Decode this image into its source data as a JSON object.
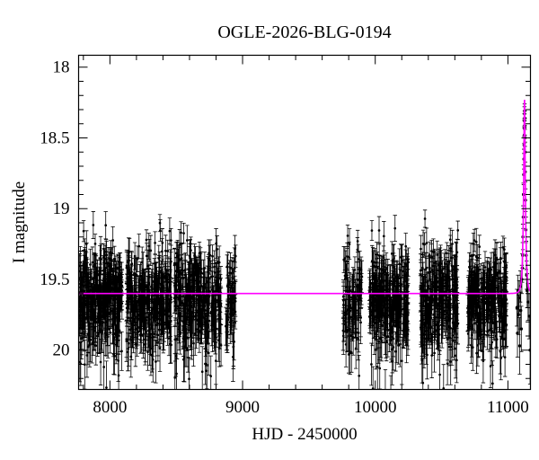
{
  "window": {
    "background": "#ffffff"
  },
  "chart_data": {
    "type": "scatter",
    "title": "OGLE-2026-BLG-0194",
    "xlabel": "HJD - 2450000",
    "ylabel": "I magnitude",
    "xlim": [
      7764,
      11170
    ],
    "ylim_display": [
      20.278,
      17.916
    ],
    "y_axis_inverted": true,
    "x_major_ticks": [
      8000,
      9000,
      10000,
      11000
    ],
    "x_major_tick_labels": [
      "8000",
      "9000",
      "10000",
      "11000"
    ],
    "x_minor_step": 200,
    "y_major_ticks": [
      18,
      18.5,
      19,
      19.5,
      20
    ],
    "y_major_tick_labels": [
      "18",
      "18.5",
      "19",
      "19.5",
      "20"
    ],
    "y_minor_step": 0.1,
    "grid": false,
    "legend": null,
    "point_color": "#000000",
    "model_color": "#ff00ff",
    "baseline_mag": 19.6,
    "model": {
      "kind": "paczynski",
      "t0": 11125,
      "tE": 14,
      "u0": 0.29,
      "peak_mag": 18.23
    },
    "scatter_mag_mean": 19.62,
    "scatter_mag_sigma": 0.175,
    "faint_tail_fraction": 0.08,
    "seasons": [
      {
        "hjd_start": 7768,
        "hjd_end": 8093,
        "n": 330
      },
      {
        "hjd_start": 8124,
        "hjd_end": 8462,
        "n": 305
      },
      {
        "hjd_start": 8483,
        "hjd_end": 8838,
        "n": 305
      },
      {
        "hjd_start": 8872,
        "hjd_end": 8948,
        "n": 55
      },
      {
        "hjd_start": 9757,
        "hjd_end": 9900,
        "n": 95
      },
      {
        "hjd_start": 9955,
        "hjd_end": 10250,
        "n": 285
      },
      {
        "hjd_start": 10340,
        "hjd_end": 10630,
        "n": 285
      },
      {
        "hjd_start": 10695,
        "hjd_end": 10990,
        "n": 265
      }
    ],
    "event_points": [
      [
        11068,
        19.7,
        0.13
      ],
      [
        11072,
        19.88,
        0.17
      ],
      [
        11076,
        19.58,
        0.11
      ],
      [
        11080,
        19.75,
        0.14
      ],
      [
        11085,
        19.63,
        0.12
      ],
      [
        11089,
        19.97,
        0.2
      ],
      [
        11093,
        19.55,
        0.11
      ],
      [
        11097,
        19.72,
        0.13
      ],
      [
        11101,
        19.85,
        0.16
      ],
      [
        11105,
        19.5,
        0.1
      ],
      [
        11108,
        19.42,
        0.1
      ],
      [
        11111,
        19.33,
        0.09
      ],
      [
        11113,
        19.2,
        0.09
      ],
      [
        11115,
        19.06,
        0.08
      ],
      [
        11117,
        18.9,
        0.08
      ],
      [
        11119,
        18.76,
        0.07
      ],
      [
        11120.5,
        18.65,
        0.07
      ],
      [
        11121.8,
        18.55,
        0.06
      ],
      [
        11122.8,
        18.48,
        0.06
      ],
      [
        11123.6,
        18.43,
        0.06
      ],
      [
        11124.3,
        18.38,
        0.05
      ],
      [
        11125,
        18.33,
        0.05
      ],
      [
        11125.8,
        18.31,
        0.05
      ],
      [
        11126.6,
        18.36,
        0.05
      ],
      [
        11127.4,
        18.42,
        0.06
      ],
      [
        11128.3,
        18.5,
        0.06
      ],
      [
        11129.5,
        18.6,
        0.07
      ],
      [
        11131,
        18.74,
        0.07
      ],
      [
        11133,
        18.94,
        0.08
      ],
      [
        11135.5,
        19.15,
        0.09
      ],
      [
        11138,
        19.33,
        0.1
      ],
      [
        11141,
        19.47,
        0.1
      ],
      [
        11145,
        19.58,
        0.12
      ],
      [
        11152,
        19.66,
        0.13
      ],
      [
        11160,
        19.76,
        0.16
      ],
      [
        11167,
        20.0,
        0.24
      ]
    ]
  }
}
